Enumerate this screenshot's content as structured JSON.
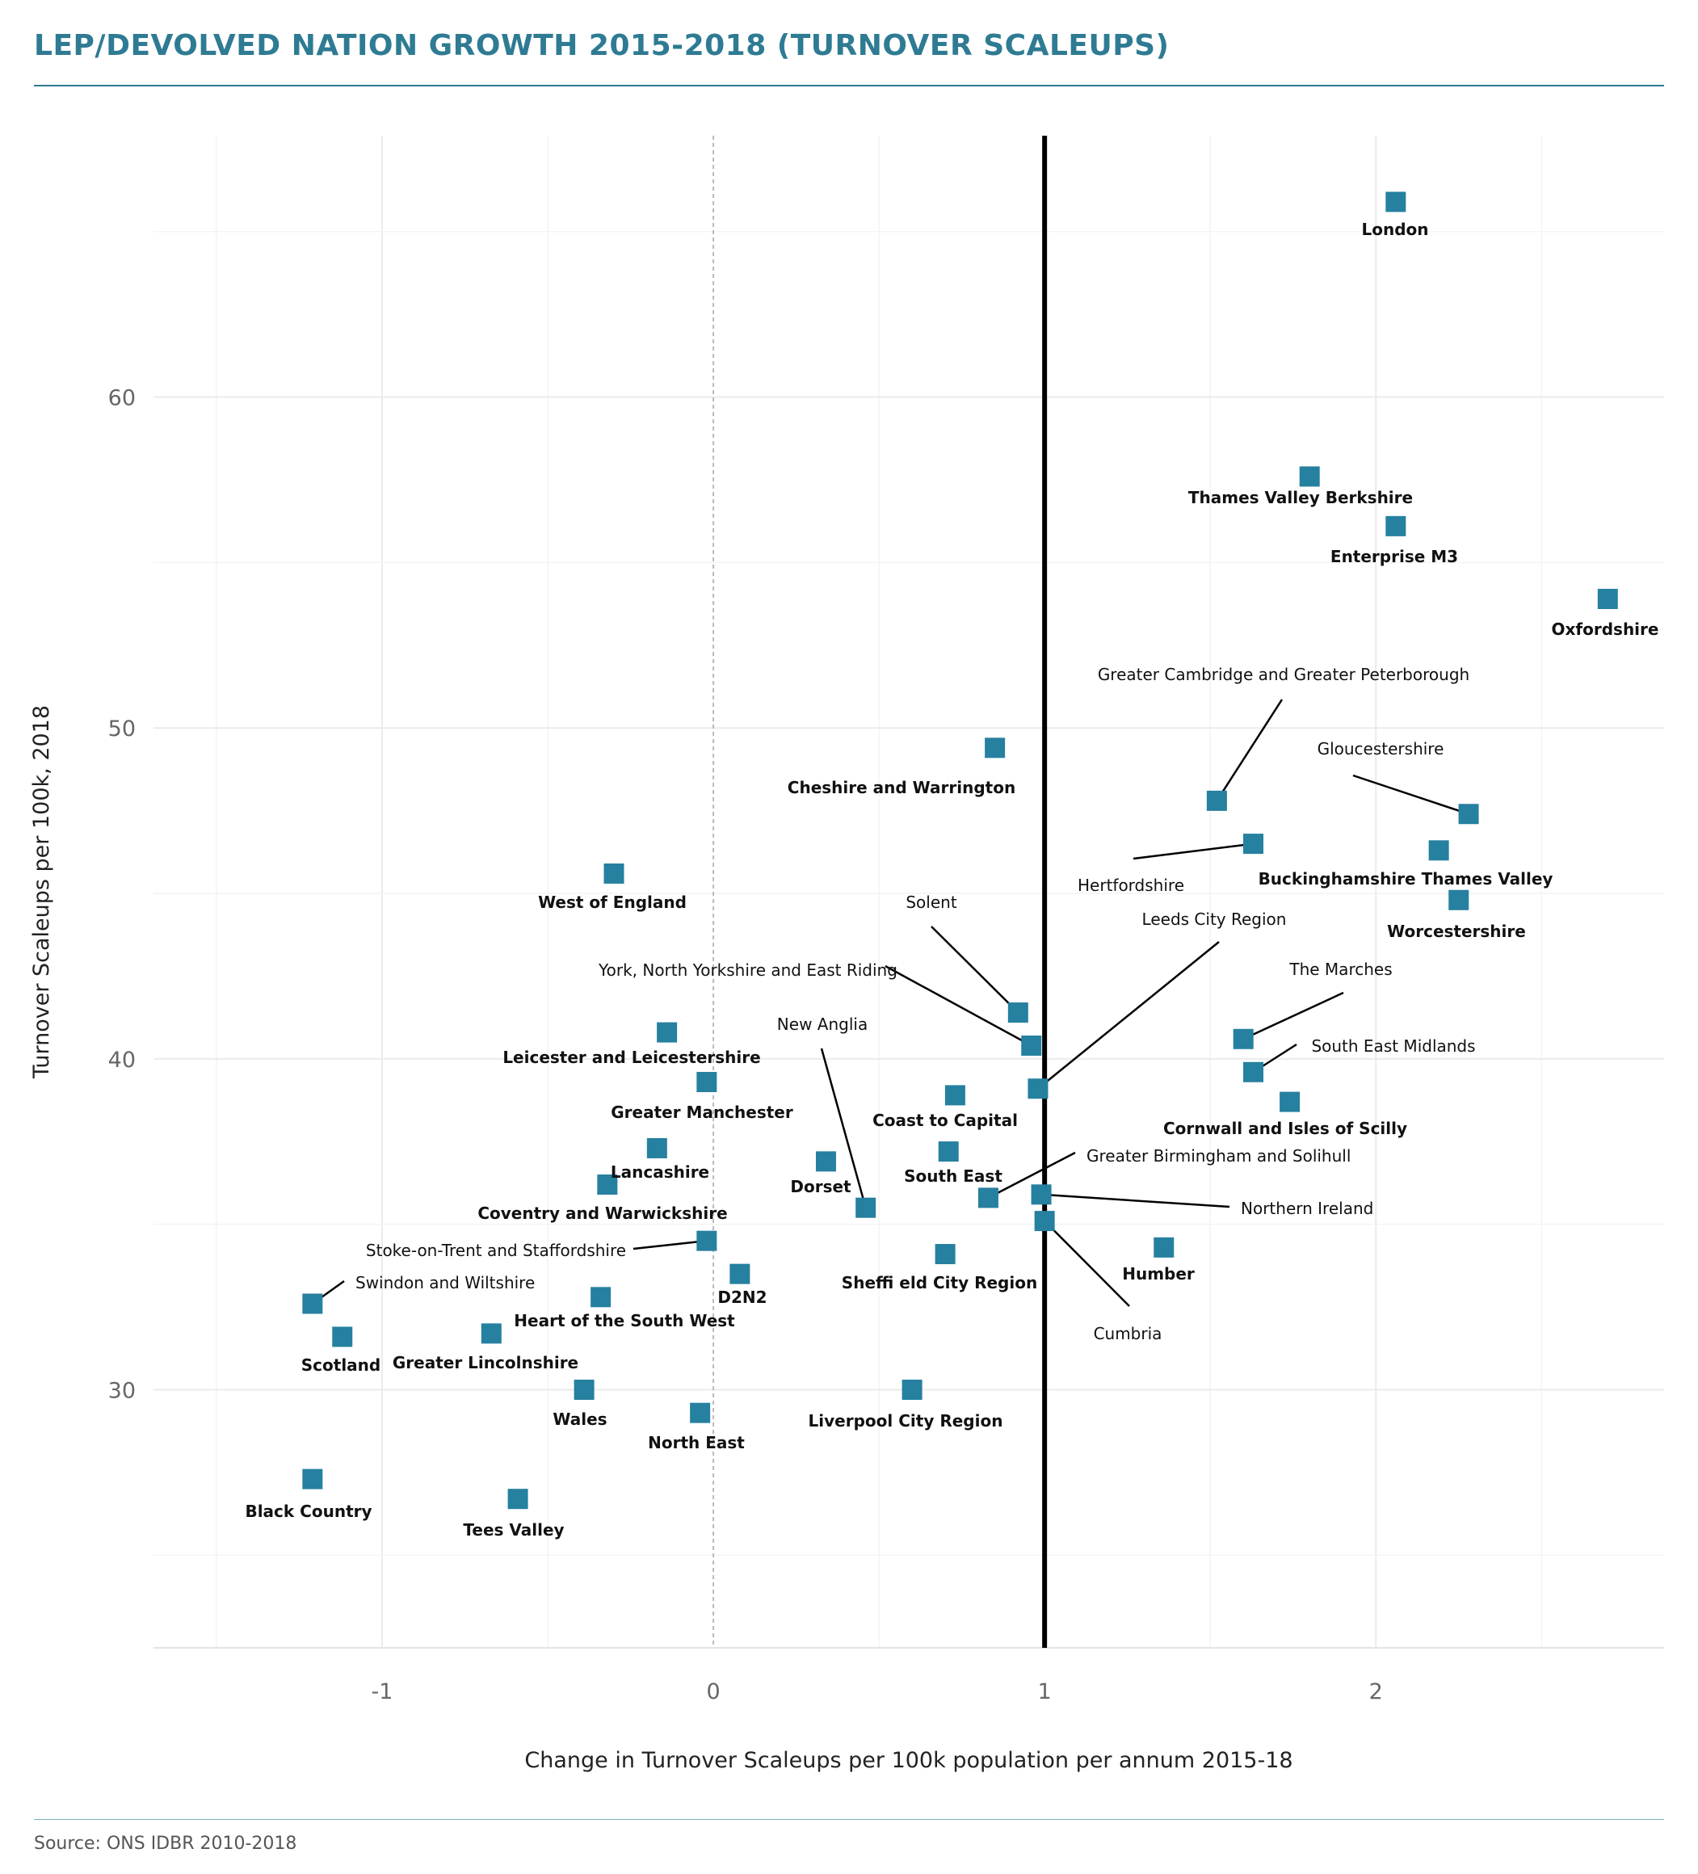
{
  "title": "LEP/DEVOLVED NATION GROWTH 2015-2018 (TURNOVER SCALEUPS)",
  "source": "Source: ONS IDBR 2010-2018",
  "colors": {
    "title": "#2e7b93",
    "marker": "#26809f",
    "grid": "#ebebeb",
    "reference_line": "#000000",
    "zero_line": "#bbbbbb"
  },
  "chart_data": {
    "type": "scatter",
    "xlabel": "Change in Turnover Scaleups per 100k population per annum 2015-18",
    "ylabel": "Turnover Scaleups per 100k, 2018",
    "xlim": [
      -1.69,
      2.87
    ],
    "ylim": [
      22.2,
      67.9
    ],
    "x_ticks": [
      -1,
      0,
      1,
      2
    ],
    "y_ticks": [
      30,
      40,
      50,
      60
    ],
    "x_tick_labels": [
      "-1",
      "0",
      "1",
      "2"
    ],
    "y_tick_labels": [
      "30",
      "40",
      "50",
      "60"
    ],
    "grid": true,
    "reference_line_x": 1,
    "zero_line_x": 0,
    "points": [
      {
        "name": "London",
        "x": 2.06,
        "y": 65.9
      },
      {
        "name": "Thames Valley Berkshire",
        "x": 1.8,
        "y": 57.6
      },
      {
        "name": "Enterprise M3",
        "x": 2.06,
        "y": 56.1
      },
      {
        "name": "Oxfordshire",
        "x": 2.7,
        "y": 53.9
      },
      {
        "name": "Greater Cambridge and Greater Peterborough",
        "x": 1.52,
        "y": 47.8
      },
      {
        "name": "Gloucestershire",
        "x": 2.28,
        "y": 47.4
      },
      {
        "name": "Cheshire and Warrington",
        "x": 0.85,
        "y": 49.4
      },
      {
        "name": "Hertfordshire",
        "x": 1.63,
        "y": 46.5
      },
      {
        "name": "Buckinghamshire Thames Valley",
        "x": 2.19,
        "y": 46.3
      },
      {
        "name": "Worcestershire",
        "x": 2.25,
        "y": 44.8
      },
      {
        "name": "West of England",
        "x": -0.3,
        "y": 45.6
      },
      {
        "name": "Solent",
        "x": 0.92,
        "y": 41.4
      },
      {
        "name": "York, North Yorkshire and East Riding",
        "x": 0.96,
        "y": 40.4
      },
      {
        "name": "Leeds City Region",
        "x": 0.98,
        "y": 39.1
      },
      {
        "name": "The Marches",
        "x": 1.6,
        "y": 40.6
      },
      {
        "name": "South East Midlands",
        "x": 1.63,
        "y": 39.6
      },
      {
        "name": "Cornwall and Isles of Scilly",
        "x": 1.74,
        "y": 38.7
      },
      {
        "name": "Leicester and Leicestershire",
        "x": -0.14,
        "y": 40.8
      },
      {
        "name": "Greater Manchester",
        "x": -0.02,
        "y": 39.3
      },
      {
        "name": "Coast to Capital",
        "x": 0.73,
        "y": 38.9
      },
      {
        "name": "New Anglia",
        "x": 0.46,
        "y": 35.5
      },
      {
        "name": "Lancashire",
        "x": -0.17,
        "y": 37.3
      },
      {
        "name": "Dorset",
        "x": 0.34,
        "y": 36.9
      },
      {
        "name": "South East",
        "x": 0.71,
        "y": 37.2
      },
      {
        "name": "Coventry and Warwickshire",
        "x": -0.32,
        "y": 36.2
      },
      {
        "name": "Greater Birmingham and Solihull",
        "x": 0.83,
        "y": 35.8
      },
      {
        "name": "Northern Ireland",
        "x": 0.99,
        "y": 35.9
      },
      {
        "name": "Cumbria",
        "x": 1.0,
        "y": 35.1
      },
      {
        "name": "Humber",
        "x": 1.36,
        "y": 34.3
      },
      {
        "name": "Stoke-on-Trent and Staffordshire",
        "x": -0.02,
        "y": 34.5
      },
      {
        "name": "D2N2",
        "x": 0.08,
        "y": 33.5
      },
      {
        "name": "Sheffield City Region",
        "x": 0.7,
        "y": 34.1
      },
      {
        "name": "Swindon and Wiltshire",
        "x": -1.21,
        "y": 32.6
      },
      {
        "name": "Heart of the South West",
        "x": -0.34,
        "y": 32.8
      },
      {
        "name": "Scotland",
        "x": -1.12,
        "y": 31.6
      },
      {
        "name": "Greater Lincolnshire",
        "x": -0.67,
        "y": 31.7
      },
      {
        "name": "Wales",
        "x": -0.39,
        "y": 30.0
      },
      {
        "name": "North East",
        "x": -0.04,
        "y": 29.3
      },
      {
        "name": "Liverpool City Region",
        "x": 0.6,
        "y": 30.0
      },
      {
        "name": "Black Country",
        "x": -1.21,
        "y": 27.3
      },
      {
        "name": "Tees Valley",
        "x": -0.59,
        "y": 26.7
      }
    ],
    "point_labels": [
      {
        "text": "London",
        "bold": true
      },
      {
        "text": "Thames Valley Berkshire",
        "bold": true
      },
      {
        "text": "Enterprise M3",
        "bold": true
      },
      {
        "text": "Oxfordshire",
        "bold": true
      },
      {
        "text": "Greater Cambridge and Greater Peterborough",
        "bold": false
      },
      {
        "text": "Gloucestershire",
        "bold": false
      },
      {
        "text": "Cheshire and Warrington",
        "bold": true
      },
      {
        "text": "Hertfordshire",
        "bold": false
      },
      {
        "text": "Buckinghamshire Thames Valley",
        "bold": true
      },
      {
        "text": "Worcestershire",
        "bold": true
      },
      {
        "text": "West of England",
        "bold": true
      },
      {
        "text": "Solent",
        "bold": false
      },
      {
        "text": "York, North Yorkshire and East Riding",
        "bold": false
      },
      {
        "text": "Leeds City Region",
        "bold": false
      },
      {
        "text": "The Marches",
        "bold": false
      },
      {
        "text": "South East Midlands",
        "bold": false
      },
      {
        "text": "Cornwall and Isles of Scilly",
        "bold": true
      },
      {
        "text": "Leicester and Leicestershire",
        "bold": true
      },
      {
        "text": "Greater Manchester",
        "bold": true
      },
      {
        "text": "Coast to Capital",
        "bold": true
      },
      {
        "text": "New Anglia",
        "bold": false
      },
      {
        "text": "Lancashire",
        "bold": true
      },
      {
        "text": "Dorset",
        "bold": true
      },
      {
        "text": "South East",
        "bold": true
      },
      {
        "text": "Coventry and Warwickshire",
        "bold": true
      },
      {
        "text": "Greater Birmingham and Solihull",
        "bold": false
      },
      {
        "text": "Northern Ireland",
        "bold": false
      },
      {
        "text": "Cumbria",
        "bold": false
      },
      {
        "text": "Humber",
        "bold": true
      },
      {
        "text": "Stoke-on-Trent and Staffordshire",
        "bold": false
      },
      {
        "text": "D2N2",
        "bold": true
      },
      {
        "text": "Sheffi eld City Region",
        "bold": true
      },
      {
        "text": "Swindon and Wiltshire",
        "bold": false
      },
      {
        "text": "Heart of the South West",
        "bold": true
      },
      {
        "text": "Scotland",
        "bold": true
      },
      {
        "text": "Greater Lincolnshire",
        "bold": true
      },
      {
        "text": "Wales",
        "bold": true
      },
      {
        "text": "North East",
        "bold": true
      },
      {
        "text": "Liverpool City Region",
        "bold": true
      },
      {
        "text": "Black Country",
        "bold": true
      },
      {
        "text": "Tees Valley",
        "bold": true
      }
    ]
  }
}
